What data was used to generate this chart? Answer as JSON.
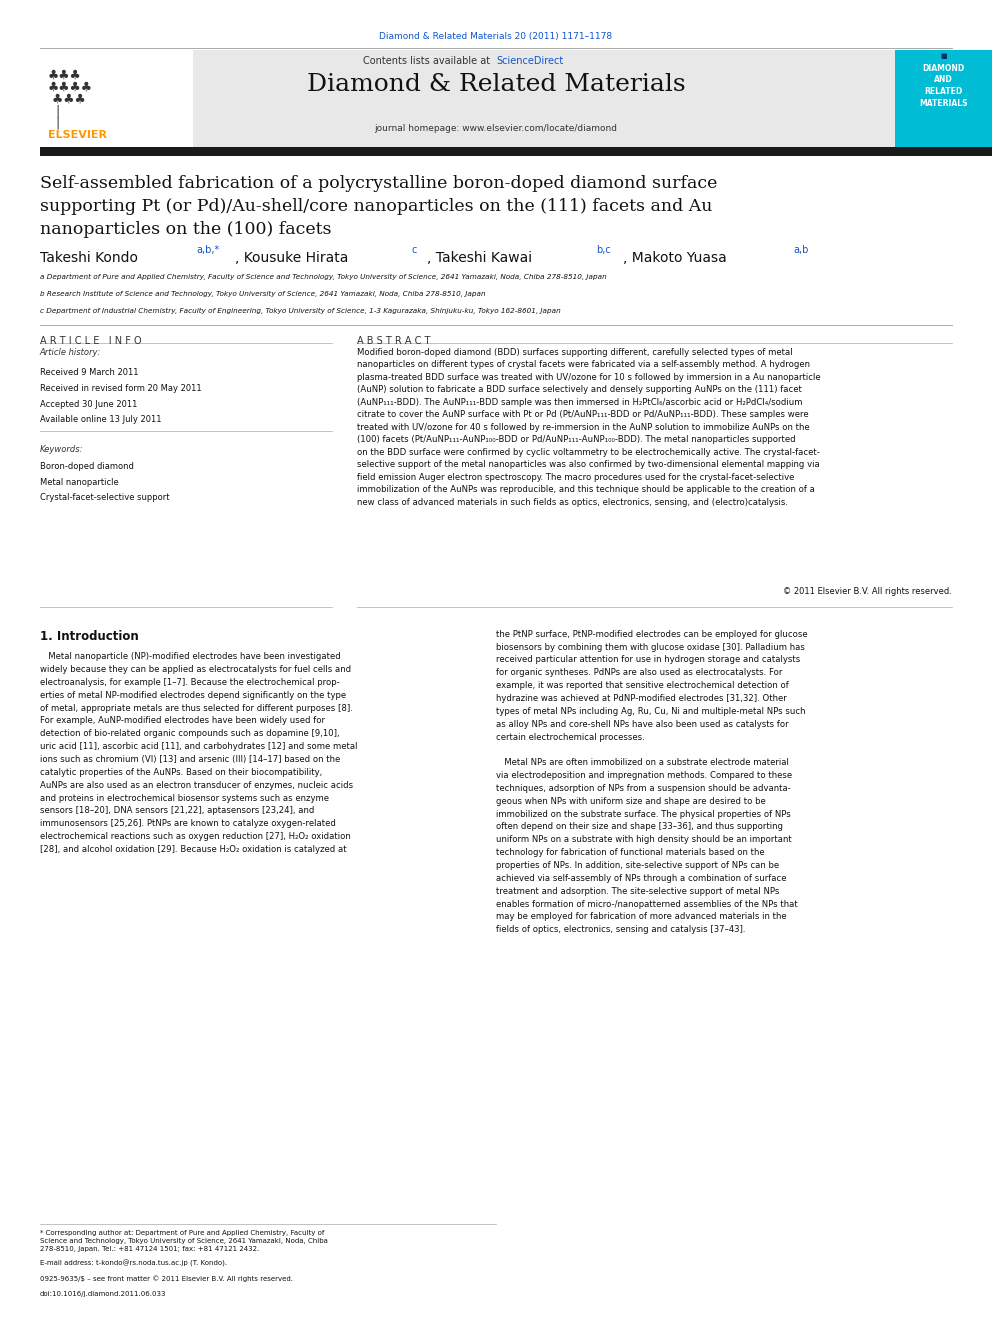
{
  "page_width": 9.92,
  "page_height": 13.23,
  "background_color": "#ffffff",
  "top_journal_ref": "Diamond & Related Materials 20 (2011) 1171–1178",
  "top_journal_ref_color": "#1155cc",
  "journal_name": "Diamond & Related Materials",
  "contents_line": "Contents lists available at ScienceDirect",
  "sciencedirect_color": "#1155cc",
  "journal_homepage": "journal homepage: www.elsevier.com/locate/diamond",
  "article_title_line1": "Self-assembled fabrication of a polycrystalline boron-doped diamond surface",
  "article_title_line2": "supporting Pt (or Pd)/Au-shell/core nanoparticles on the (111) facets and Au",
  "article_title_line3": "nanoparticles on the (100) facets",
  "author_main": "Takeshi Kondo",
  "author_super1": "a,b,*",
  "author2": "Kousuke Hirata",
  "author_super2": "c",
  "author3": "Takeshi Kawai",
  "author_super3": "b,c",
  "author4": "Makoto Yuasa",
  "author_super4": "a,b",
  "affil_a": "a Department of Pure and Applied Chemistry, Faculty of Science and Technology, Tokyo University of Science, 2641 Yamazaki, Noda, Chiba 278-8510, Japan",
  "affil_b": "b Research Institute of Science and Technology, Tokyo University of Science, 2641 Yamazaki, Noda, Chiba 278-8510, Japan",
  "affil_c": "c Department of Industrial Chemistry, Faculty of Engineering, Tokyo University of Science, 1-3 Kagurazaka, Shinjuku-ku, Tokyo 162-8601, Japan",
  "article_info_header": "A R T I C L E   I N F O",
  "abstract_header": "A B S T R A C T",
  "article_history_label": "Article history:",
  "received": "Received 9 March 2011",
  "revised": "Received in revised form 20 May 2011",
  "accepted": "Accepted 30 June 2011",
  "online": "Available online 13 July 2011",
  "keywords_label": "Keywords:",
  "kw1": "Boron-doped diamond",
  "kw2": "Metal nanoparticle",
  "kw3": "Crystal-facet-selective support",
  "copyright": "© 2011 Elsevier B.V. All rights reserved.",
  "intro_header": "1. Introduction",
  "footnote_star": "* Corresponding author at: Department of Pure and Applied Chemistry, Faculty of Science and Technology, Tokyo University of Science, 2641 Yamazaki, Noda, Chiba 278-8510, Japan. Tel.: +81 47124 1501; fax: +81 47121 2432.",
  "footnote_email": "E-mail address: t-kondo@rs.noda.tus.ac.jp (T. Kondo).",
  "issn_line": "0925-9635/$ – see front matter © 2011 Elsevier B.V. All rights reserved.",
  "doi_line": "doi:10.1016/j.diamond.2011.06.033",
  "header_bg_color": "#e8e8e8",
  "sidebar_bg_color": "#00bcd4",
  "sidebar_text_color": "#ffffff",
  "elsevier_color": "#ff9800",
  "black_bar_color": "#1a1a1a"
}
